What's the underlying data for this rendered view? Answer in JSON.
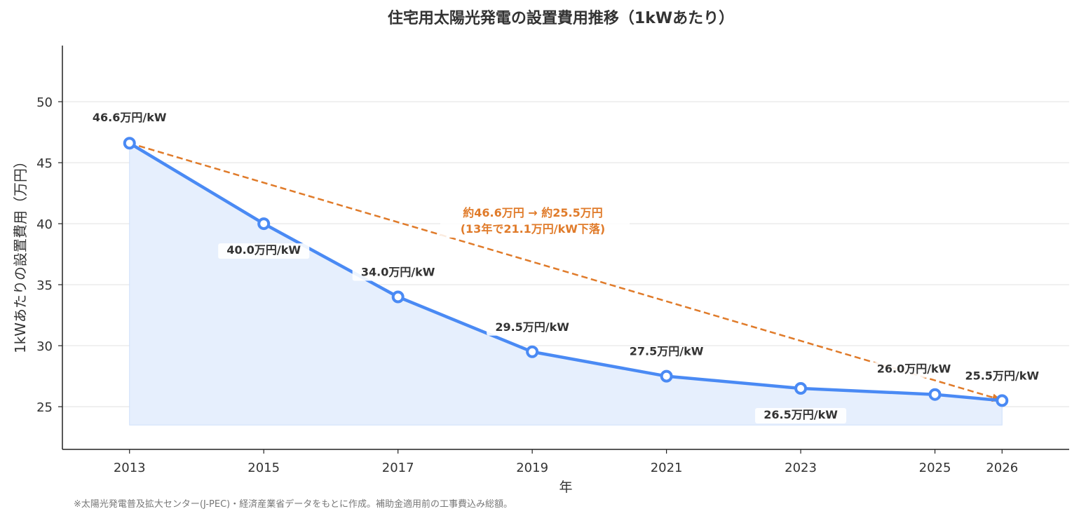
{
  "chart_data": {
    "type": "line",
    "title": "住宅用太陽光発電の設置費用推移（1kWあたり）",
    "xlabel": "年",
    "ylabel": "1kWあたりの設置費用（万円）",
    "x": [
      2013,
      2015,
      2017,
      2019,
      2021,
      2023,
      2025,
      2026
    ],
    "values": [
      46.6,
      40.0,
      34.0,
      29.5,
      27.5,
      26.5,
      26.0,
      25.5
    ],
    "data_labels": [
      "46.6万円/kW",
      "40.0万円/kW",
      "34.0万円/kW",
      "29.5万円/kW",
      "27.5万円/kW",
      "26.5万円/kW",
      "26.0万円/kW",
      "25.5万円/kW"
    ],
    "xticks": [
      "2013",
      "2015",
      "2017",
      "2019",
      "2021",
      "2023",
      "2025",
      "2026"
    ],
    "yticks": [
      "25",
      "30",
      "35",
      "40",
      "45",
      "50"
    ],
    "ytick_values": [
      25,
      30,
      35,
      40,
      45,
      50
    ],
    "xlim": [
      2012,
      2027
    ],
    "ylim": [
      21.5,
      54.6
    ],
    "fill_baseline": 23.5,
    "grid": "horizontal",
    "trend_arrow": {
      "from": [
        2013,
        46.6
      ],
      "to": [
        2026,
        25.5
      ]
    },
    "annotation": {
      "line1": "約46.6万円 → 約25.5万円",
      "line2": "(13年で21.1万円/kW下落)"
    },
    "footnote": "※太陽光発電普及拡大センター(J-PEC)・経済産業省データをもとに作成。補助金適用前の工事費込み総額。",
    "colors": {
      "line": "#4a8af4",
      "fill": "#e6effd",
      "trend": "#e07b2a",
      "text": "#333333",
      "grid": "#e5e5e5"
    }
  }
}
